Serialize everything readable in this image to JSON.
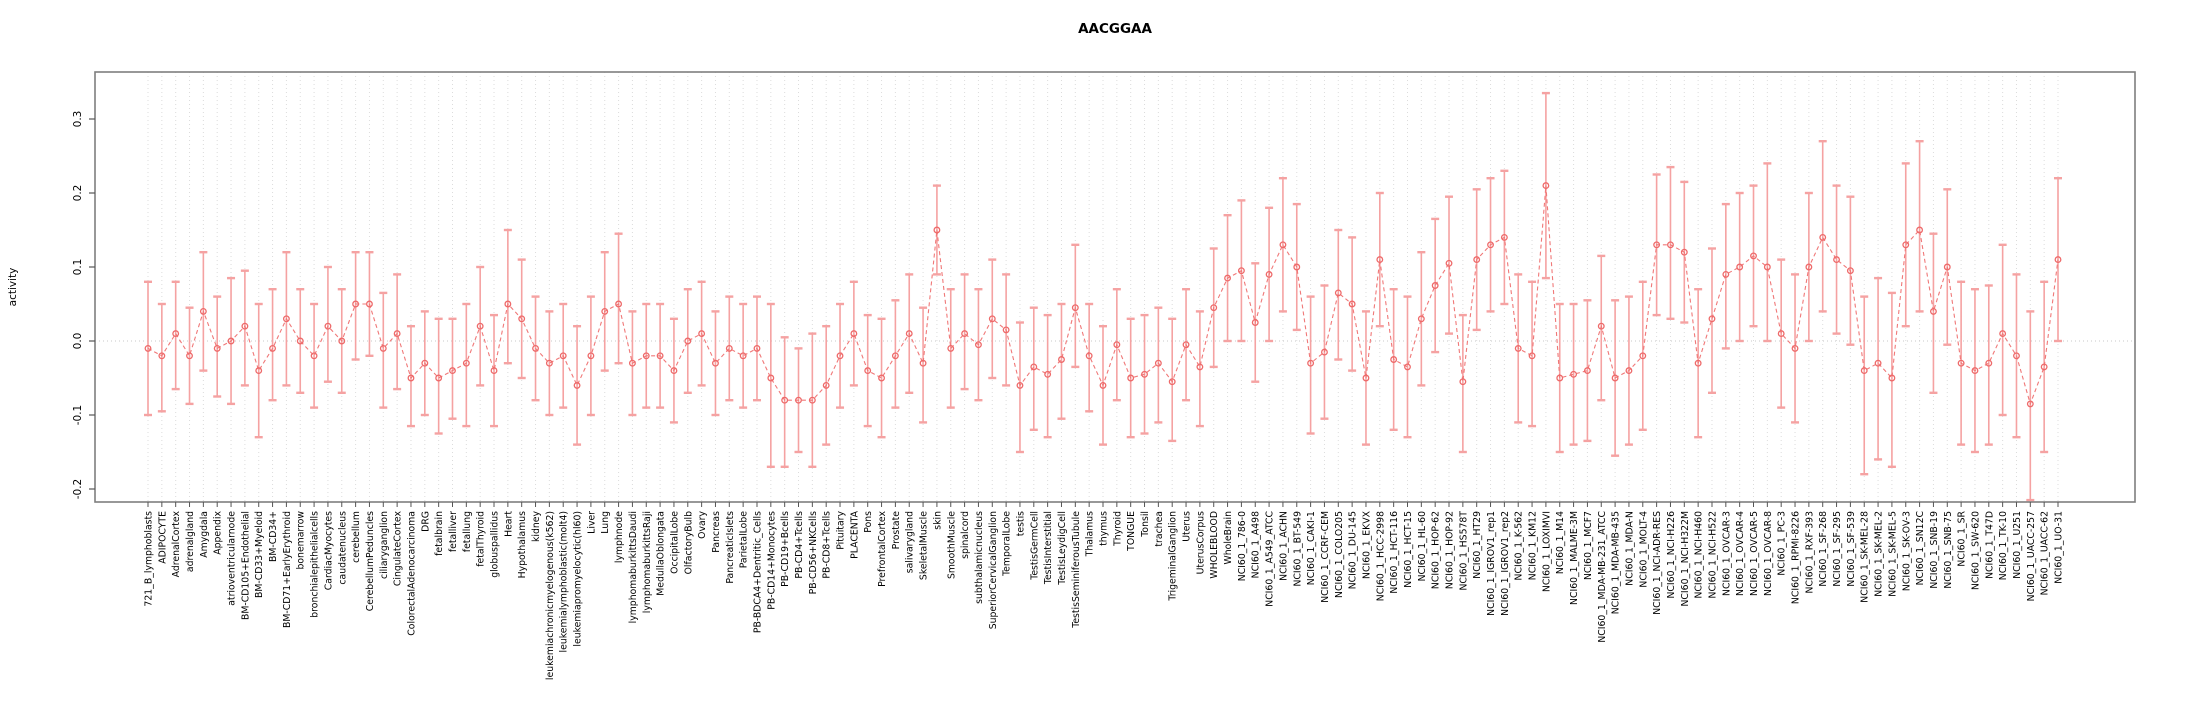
{
  "title": "AACGGAA",
  "axes": {
    "ylabel": "activity",
    "ytick_labels": [
      "-0.2",
      "-0.1",
      "0.0",
      "0.1",
      "0.2",
      "0.3"
    ]
  },
  "colors": {
    "point": "#ee6a6a",
    "line": "#f07878",
    "errorbar": "#f5a2a2",
    "grid": "#dcdcdc",
    "zero_line": "#c9c9c9",
    "border": "#7f7f7f",
    "text": "#000000",
    "tick": "#555555"
  },
  "chart_data": {
    "type": "line",
    "title": "AACGGAA",
    "xlabel": "",
    "ylabel": "activity",
    "ylim": [
      -0.25,
      0.36
    ],
    "yticks": [
      -0.2,
      -0.1,
      0.0,
      0.1,
      0.2,
      0.3
    ],
    "grid": "dotted vertical line per category, dotted horizontal line at 0",
    "legend": "none",
    "marker": "open-circle",
    "error_bars": true,
    "categories": [
      "721_B_lymphoblasts",
      "ADIPOCYTE",
      "AdrenalCortex",
      "adrenalgland",
      "Amygdala",
      "Appendix",
      "atrioventricularnode",
      "BM-CD105+Endothelial",
      "BM-CD33+Myeloid",
      "BM-CD34+",
      "BM-CD71+EarlyErythroid",
      "bonemarrow",
      "bronchialepithelialcells",
      "CardiacMyocytes",
      "caudatenucleus",
      "cerebellum",
      "CerebellumPeduncles",
      "ciliaryganglion",
      "CingulateCortex",
      "ColorectalAdenocarcinoma",
      "DRG",
      "fetalbrain",
      "fetalliver",
      "fetallung",
      "fetalThyroid",
      "globuspallidus",
      "Heart",
      "Hypothalamus",
      "kidney",
      "leukemiachronicmyelogenous(k562)",
      "leukemialymphoblastic(molt4)",
      "leukemiapromyelocytic(hl60)",
      "Liver",
      "Lung",
      "lymphnode",
      "lymphomaburkittsDaudi",
      "lymphomaburkittsRaji",
      "MedullaOblongata",
      "OccipitalLobe",
      "OlfactoryBulb",
      "Ovary",
      "Pancreas",
      "PancreaticIslets",
      "ParietalLobe",
      "PB-BDCA4+Dentritic_Cells",
      "PB-CD14+Monocytes",
      "PB-CD19+Bcells",
      "PB-CD4+Tcells",
      "PB-CD56+NKCells",
      "PB-CD8+Tcells",
      "Pituitary",
      "PLACENTA",
      "Pons",
      "PrefrontalCortex",
      "Prostate",
      "salivarygland",
      "SkeletalMuscle",
      "skin",
      "SmoothMuscle",
      "spinalcord",
      "subthalamicnucleus",
      "SuperiorCervicalGanglion",
      "TemporalLobe",
      "testis",
      "TestisGermCell",
      "TestisInterstitial",
      "TestisLeydigCell",
      "TestisSeminiferousTubule",
      "Thalamus",
      "thymus",
      "Thyroid",
      "TONGUE",
      "Tonsil",
      "trachea",
      "TrigeminalGanglion",
      "Uterus",
      "UterusCorpus",
      "WHOLEBLOOD",
      "WholeBrain",
      "NCI60_1_786-0",
      "NCI60_1_A498",
      "NCI60_1_A549_ATCC",
      "NCI60_1_ACHN",
      "NCI60_1_BT-549",
      "NCI60_1_CAKI-1",
      "NCI60_1_CCRF-CEM",
      "NCI60_1_COLO205",
      "NCI60_1_DU-145",
      "NCI60_1_EKVX",
      "NCI60_1_HCC-2998",
      "NCI60_1_HCT-116",
      "NCI60_1_HCT-15",
      "NCI60_1_HL-60",
      "NCI60_1_HOP-62",
      "NCI60_1_HOP-92",
      "NCI60_1_HS578T",
      "NCI60_1_HT29",
      "NCI60_1_IGROV1_rep1",
      "NCI60_1_IGROV1_rep2",
      "NCI60_1_K-562",
      "NCI60_1_KM12",
      "NCI60_1_LOXIMVI",
      "NCI60_1_M14",
      "NCI60_1_MALME-3M",
      "NCI60_1_MCF7",
      "NCI60_1_MDA-MB-231_ATCC",
      "NCI60_1_MDA-MB-435",
      "NCI60_1_MDA-N",
      "NCI60_1_MOLT-4",
      "NCI60_1_NCI-ADR-RES",
      "NCI60_1_NCI-H226",
      "NCI60_1_NCI-H322M",
      "NCI60_1_NCI-H460",
      "NCI60_1_NCI-H522",
      "NCI60_1_OVCAR-3",
      "NCI60_1_OVCAR-4",
      "NCI60_1_OVCAR-5",
      "NCI60_1_OVCAR-8",
      "NCI60_1_PC-3",
      "NCI60_1_RPMI-8226",
      "NCI60_1_RXF-393",
      "NCI60_1_SF-268",
      "NCI60_1_SF-295",
      "NCI60_1_SF-539",
      "NCI60_1_SK-MEL-28",
      "NCI60_1_SK-MEL-2",
      "NCI60_1_SK-MEL-5",
      "NCI60_1_SK-OV-3",
      "NCI60_1_SN12C",
      "NCI60_1_SNB-19",
      "NCI60_1_SNB-75",
      "NCI60_1_SR",
      "NCI60_1_SW-620",
      "NCI60_1_T47D",
      "NCI60_1_TK-10",
      "NCI60_1_U251",
      "NCI60_1_UACC-257",
      "NCI60_1_UACC-62",
      "NCI60_1_UO-31"
    ],
    "values": [
      -0.01,
      -0.02,
      0.01,
      -0.02,
      0.04,
      -0.01,
      0.0,
      0.02,
      -0.04,
      -0.01,
      0.03,
      0.0,
      -0.02,
      0.02,
      0.0,
      0.05,
      0.05,
      -0.01,
      0.01,
      -0.05,
      -0.03,
      -0.05,
      -0.04,
      -0.03,
      0.02,
      -0.04,
      0.05,
      0.03,
      -0.01,
      -0.03,
      -0.02,
      -0.06,
      -0.02,
      0.04,
      0.05,
      -0.03,
      -0.02,
      -0.02,
      -0.04,
      0.0,
      0.01,
      -0.03,
      -0.01,
      -0.02,
      -0.01,
      -0.05,
      -0.08,
      -0.08,
      -0.08,
      -0.06,
      -0.02,
      0.01,
      -0.04,
      -0.05,
      -0.02,
      0.01,
      -0.03,
      0.15,
      -0.01,
      0.01,
      -0.005,
      0.03,
      0.015,
      -0.06,
      -0.035,
      -0.045,
      -0.025,
      0.045,
      -0.02,
      -0.06,
      -0.005,
      -0.05,
      -0.045,
      -0.03,
      -0.055,
      -0.005,
      -0.035,
      0.045,
      0.085,
      0.095,
      0.025,
      0.09,
      0.13,
      0.1,
      -0.03,
      -0.015,
      0.065,
      0.05,
      -0.05,
      0.11,
      -0.025,
      -0.035,
      0.03,
      0.075,
      0.105,
      -0.055,
      0.11,
      0.13,
      0.14,
      -0.01,
      -0.02,
      0.21,
      -0.05,
      -0.045,
      -0.04,
      0.02,
      -0.05,
      -0.04,
      -0.02,
      0.13,
      0.13,
      0.12,
      -0.03,
      0.03,
      0.09,
      0.1,
      0.115,
      0.1,
      0.01,
      -0.01,
      0.1,
      0.14,
      0.11,
      0.095,
      -0.04,
      -0.03,
      -0.05,
      0.13,
      0.15,
      0.04,
      0.1,
      -0.03,
      -0.04,
      -0.03,
      0.01,
      -0.02,
      -0.085,
      -0.035,
      0.11
    ],
    "err_lo": [
      -0.1,
      -0.095,
      -0.065,
      -0.085,
      -0.04,
      -0.075,
      -0.085,
      -0.06,
      -0.13,
      -0.08,
      -0.06,
      -0.07,
      -0.09,
      -0.055,
      -0.07,
      -0.025,
      -0.02,
      -0.09,
      -0.065,
      -0.115,
      -0.1,
      -0.125,
      -0.105,
      -0.115,
      -0.06,
      -0.115,
      -0.03,
      -0.05,
      -0.08,
      -0.1,
      -0.09,
      -0.14,
      -0.1,
      -0.04,
      -0.03,
      -0.1,
      -0.09,
      -0.09,
      -0.11,
      -0.07,
      -0.06,
      -0.1,
      -0.08,
      -0.09,
      -0.08,
      -0.17,
      -0.17,
      -0.15,
      -0.17,
      -0.14,
      -0.09,
      -0.06,
      -0.115,
      -0.13,
      -0.09,
      -0.07,
      -0.11,
      0.09,
      -0.09,
      -0.065,
      -0.08,
      -0.05,
      -0.06,
      -0.15,
      -0.12,
      -0.13,
      -0.105,
      -0.035,
      -0.095,
      -0.14,
      -0.08,
      -0.13,
      -0.125,
      -0.11,
      -0.135,
      -0.08,
      -0.115,
      -0.035,
      0.0,
      0.0,
      -0.055,
      0.0,
      0.04,
      0.015,
      -0.125,
      -0.105,
      -0.025,
      -0.04,
      -0.14,
      0.02,
      -0.12,
      -0.13,
      -0.06,
      -0.015,
      0.01,
      -0.15,
      0.015,
      0.04,
      0.05,
      -0.11,
      -0.115,
      0.085,
      -0.15,
      -0.14,
      -0.135,
      -0.08,
      -0.155,
      -0.14,
      -0.12,
      0.035,
      0.03,
      0.025,
      -0.13,
      -0.07,
      -0.01,
      0.0,
      0.02,
      0.0,
      -0.09,
      -0.11,
      0.0,
      0.04,
      0.01,
      -0.005,
      -0.18,
      -0.16,
      -0.17,
      0.02,
      0.04,
      -0.07,
      -0.005,
      -0.14,
      -0.15,
      -0.14,
      -0.1,
      -0.13,
      -0.215,
      -0.15,
      0.0
    ],
    "err_hi": [
      0.08,
      0.05,
      0.08,
      0.045,
      0.12,
      0.06,
      0.085,
      0.095,
      0.05,
      0.07,
      0.12,
      0.07,
      0.05,
      0.1,
      0.07,
      0.12,
      0.12,
      0.065,
      0.09,
      0.02,
      0.04,
      0.03,
      0.03,
      0.05,
      0.1,
      0.035,
      0.15,
      0.11,
      0.06,
      0.04,
      0.05,
      0.02,
      0.06,
      0.12,
      0.145,
      0.04,
      0.05,
      0.05,
      0.03,
      0.07,
      0.08,
      0.04,
      0.06,
      0.05,
      0.06,
      0.05,
      0.005,
      -0.01,
      0.01,
      0.02,
      0.05,
      0.08,
      0.035,
      0.03,
      0.055,
      0.09,
      0.045,
      0.21,
      0.07,
      0.09,
      0.07,
      0.11,
      0.09,
      0.025,
      0.045,
      0.035,
      0.05,
      0.13,
      0.05,
      0.02,
      0.07,
      0.03,
      0.035,
      0.045,
      0.03,
      0.07,
      0.04,
      0.125,
      0.17,
      0.19,
      0.105,
      0.18,
      0.22,
      0.185,
      0.06,
      0.075,
      0.15,
      0.14,
      0.04,
      0.2,
      0.07,
      0.06,
      0.12,
      0.165,
      0.195,
      0.035,
      0.205,
      0.22,
      0.23,
      0.09,
      0.08,
      0.335,
      0.05,
      0.05,
      0.055,
      0.115,
      0.055,
      0.06,
      0.08,
      0.225,
      0.235,
      0.215,
      0.07,
      0.125,
      0.185,
      0.2,
      0.21,
      0.24,
      0.11,
      0.09,
      0.2,
      0.27,
      0.21,
      0.195,
      0.06,
      0.085,
      0.065,
      0.24,
      0.27,
      0.145,
      0.205,
      0.08,
      0.07,
      0.075,
      0.13,
      0.09,
      0.04,
      0.08,
      0.22
    ]
  }
}
